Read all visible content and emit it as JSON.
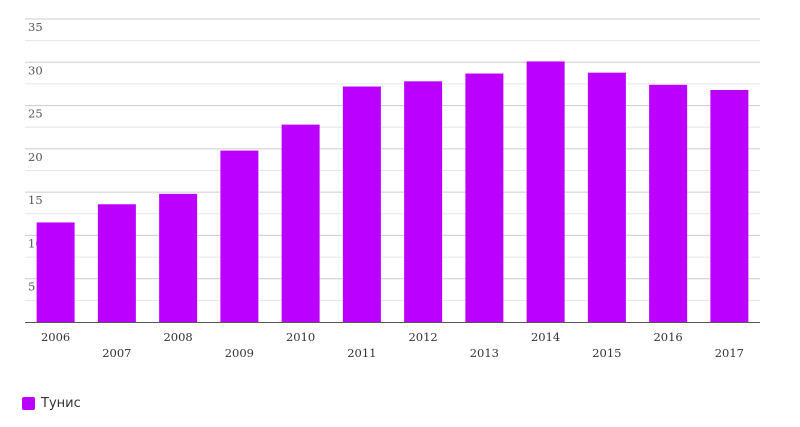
{
  "chart_data": {
    "type": "bar",
    "categories": [
      "2006",
      "2007",
      "2008",
      "2009",
      "2010",
      "2011",
      "2012",
      "2013",
      "2014",
      "2015",
      "2016",
      "2017"
    ],
    "series": [
      {
        "name": "Тунис",
        "values": [
          11.5,
          13.6,
          14.8,
          19.8,
          22.8,
          27.2,
          27.8,
          28.7,
          30.1,
          28.8,
          27.4,
          26.8
        ],
        "color": "#bb00ff"
      }
    ],
    "y_ticks": [
      "5",
      "10",
      "15",
      "20",
      "25",
      "30",
      "35"
    ],
    "ylim": [
      0,
      35
    ],
    "grid": true,
    "legend_position": "bottom-left",
    "title": "",
    "xlabel": "",
    "ylabel": ""
  }
}
